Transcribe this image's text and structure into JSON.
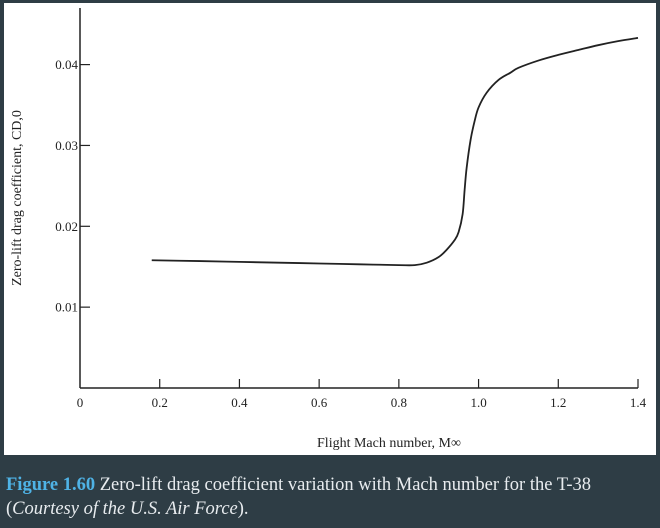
{
  "chart_data": {
    "type": "line",
    "xlabel": "Flight Mach number, M∞",
    "ylabel": "Zero-lift drag coefficient, CD,0",
    "xlim": [
      0,
      1.4
    ],
    "ylim": [
      0,
      0.047
    ],
    "x_ticks": [
      0,
      0.2,
      0.4,
      0.6,
      0.8,
      1.0,
      1.2,
      1.4
    ],
    "x_tick_labels": [
      "0",
      "0.2",
      "0.4",
      "0.6",
      "0.8",
      "1.0",
      "1.2",
      "1.4"
    ],
    "y_ticks": [
      0.01,
      0.02,
      0.03,
      0.04
    ],
    "y_tick_labels": [
      "0.01",
      "0.02",
      "0.03",
      "0.04"
    ],
    "grid": false,
    "x": [
      0.18,
      0.3,
      0.4,
      0.5,
      0.6,
      0.7,
      0.8,
      0.84,
      0.87,
      0.9,
      0.92,
      0.94,
      0.95,
      0.96,
      0.965,
      0.97,
      0.98,
      0.99,
      1.0,
      1.02,
      1.05,
      1.08,
      1.1,
      1.15,
      1.2,
      1.25,
      1.3,
      1.35,
      1.4
    ],
    "y": [
      0.0158,
      0.0157,
      0.0156,
      0.0155,
      0.0154,
      0.0153,
      0.0152,
      0.0152,
      0.0155,
      0.0162,
      0.0171,
      0.0183,
      0.0193,
      0.0215,
      0.0245,
      0.0272,
      0.0307,
      0.033,
      0.0347,
      0.0365,
      0.0381,
      0.039,
      0.0396,
      0.0405,
      0.0412,
      0.0418,
      0.0424,
      0.0429,
      0.0433
    ]
  },
  "caption": {
    "label": "Figure 1.60",
    "text": " Zero-lift drag coefficient variation with Mach number for the T-38 (",
    "credit": "Courtesy of the U.S. Air Force",
    "end": ")."
  },
  "colors": {
    "background": "#2e3d45",
    "panel": "#ffffff",
    "caption_label": "#4fb3e6",
    "caption_text": "#e8ecef",
    "line": "#222222"
  }
}
